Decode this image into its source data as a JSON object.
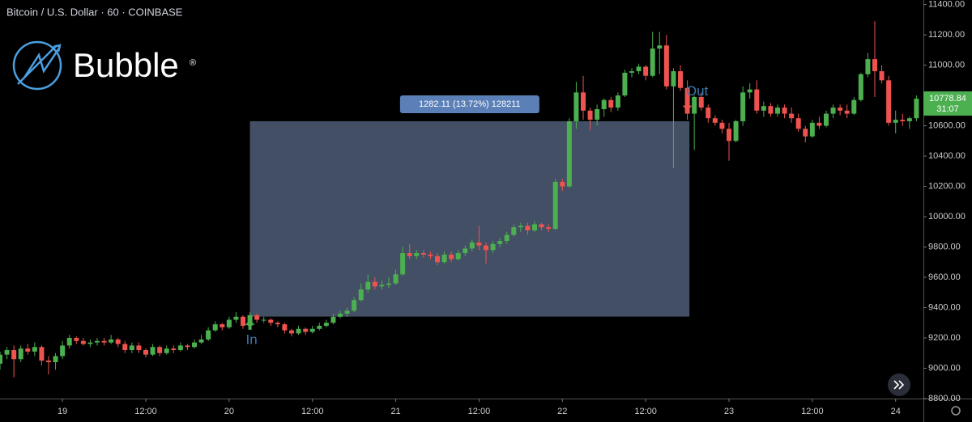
{
  "chart_data": {
    "type": "candlestick",
    "title": "Bitcoin / U.S. Dollar · 60 · COINBASE",
    "logo": {
      "name": "Bubble",
      "mark": "®"
    },
    "x": [
      -9,
      -8,
      -7,
      -6,
      -5,
      -4,
      -3,
      -2,
      -1,
      0,
      1,
      2,
      3,
      4,
      5,
      6,
      7,
      8,
      9,
      10,
      11,
      12,
      13,
      14,
      15,
      16,
      17,
      18,
      19,
      20,
      21,
      22,
      23,
      24,
      25,
      26,
      27,
      28,
      29,
      30,
      31,
      32,
      33,
      34,
      35,
      36,
      37,
      38,
      39,
      40,
      41,
      42,
      43,
      44,
      45,
      46,
      47,
      48,
      49,
      50,
      51,
      52,
      53,
      54,
      55,
      56,
      57,
      58,
      59,
      60,
      61,
      62,
      63,
      64,
      65,
      66,
      67,
      68,
      69,
      70,
      71,
      72,
      73,
      74,
      75,
      76,
      77,
      78,
      79,
      80,
      81,
      82,
      83,
      84,
      85,
      86,
      87,
      88,
      89,
      90,
      91,
      92,
      93,
      94,
      95,
      96,
      97,
      98,
      99,
      100,
      101,
      102,
      103,
      104,
      105,
      106,
      107,
      108,
      109,
      110,
      111,
      112,
      113,
      114,
      115,
      116,
      117,
      118,
      119,
      120,
      121,
      122,
      123
    ],
    "candles": [
      [
        9030,
        9110,
        8990,
        9090
      ],
      [
        9090,
        9140,
        9060,
        9120
      ],
      [
        9120,
        9150,
        8940,
        9060
      ],
      [
        9060,
        9150,
        9040,
        9130
      ],
      [
        9130,
        9160,
        9090,
        9110
      ],
      [
        9110,
        9170,
        9080,
        9140
      ],
      [
        9140,
        9150,
        9020,
        9050
      ],
      [
        9050,
        9080,
        8960,
        9040
      ],
      [
        9040,
        9100,
        8990,
        9080
      ],
      [
        9080,
        9180,
        9060,
        9150
      ],
      [
        9150,
        9220,
        9130,
        9200
      ],
      [
        9200,
        9210,
        9160,
        9180
      ],
      [
        9180,
        9200,
        9150,
        9160
      ],
      [
        9160,
        9190,
        9140,
        9170
      ],
      [
        9170,
        9200,
        9150,
        9180
      ],
      [
        9180,
        9200,
        9150,
        9170
      ],
      [
        9170,
        9220,
        9160,
        9190
      ],
      [
        9190,
        9200,
        9140,
        9160
      ],
      [
        9160,
        9180,
        9100,
        9120
      ],
      [
        9120,
        9170,
        9100,
        9150
      ],
      [
        9150,
        9170,
        9100,
        9120
      ],
      [
        9120,
        9130,
        9070,
        9090
      ],
      [
        9090,
        9160,
        9080,
        9140
      ],
      [
        9140,
        9150,
        9080,
        9100
      ],
      [
        9100,
        9150,
        9090,
        9130
      ],
      [
        9130,
        9150,
        9100,
        9120
      ],
      [
        9120,
        9170,
        9110,
        9150
      ],
      [
        9150,
        9160,
        9120,
        9140
      ],
      [
        9140,
        9190,
        9130,
        9170
      ],
      [
        9170,
        9220,
        9160,
        9190
      ],
      [
        9190,
        9270,
        9180,
        9250
      ],
      [
        9250,
        9310,
        9240,
        9290
      ],
      [
        9290,
        9300,
        9250,
        9270
      ],
      [
        9270,
        9340,
        9260,
        9320
      ],
      [
        9320,
        9370,
        9300,
        9340
      ],
      [
        9340,
        9350,
        9260,
        9280
      ],
      [
        9280,
        9370,
        9270,
        9350
      ],
      [
        9350,
        9360,
        9300,
        9320
      ],
      [
        9320,
        9340,
        9300,
        9320
      ],
      [
        9320,
        9330,
        9280,
        9300
      ],
      [
        9300,
        9310,
        9270,
        9290
      ],
      [
        9290,
        9300,
        9230,
        9250
      ],
      [
        9250,
        9260,
        9210,
        9230
      ],
      [
        9230,
        9280,
        9220,
        9260
      ],
      [
        9260,
        9270,
        9220,
        9240
      ],
      [
        9240,
        9280,
        9230,
        9260
      ],
      [
        9260,
        9300,
        9250,
        9280
      ],
      [
        9280,
        9320,
        9270,
        9300
      ],
      [
        9300,
        9360,
        9290,
        9340
      ],
      [
        9340,
        9380,
        9330,
        9360
      ],
      [
        9360,
        9400,
        9340,
        9380
      ],
      [
        9380,
        9470,
        9370,
        9450
      ],
      [
        9450,
        9560,
        9440,
        9520
      ],
      [
        9520,
        9620,
        9500,
        9570
      ],
      [
        9570,
        9600,
        9520,
        9540
      ],
      [
        9540,
        9580,
        9520,
        9550
      ],
      [
        9550,
        9600,
        9530,
        9560
      ],
      [
        9560,
        9650,
        9550,
        9620
      ],
      [
        9620,
        9800,
        9610,
        9760
      ],
      [
        9760,
        9820,
        9720,
        9740
      ],
      [
        9740,
        9780,
        9720,
        9760
      ],
      [
        9760,
        9780,
        9730,
        9750
      ],
      [
        9750,
        9770,
        9720,
        9740
      ],
      [
        9740,
        9760,
        9680,
        9700
      ],
      [
        9700,
        9770,
        9690,
        9750
      ],
      [
        9750,
        9770,
        9700,
        9720
      ],
      [
        9720,
        9780,
        9710,
        9760
      ],
      [
        9760,
        9810,
        9740,
        9790
      ],
      [
        9790,
        9850,
        9770,
        9830
      ],
      [
        9830,
        9940,
        9780,
        9810
      ],
      [
        9810,
        9830,
        9690,
        9780
      ],
      [
        9780,
        9840,
        9760,
        9820
      ],
      [
        9820,
        9860,
        9800,
        9840
      ],
      [
        9840,
        9900,
        9820,
        9880
      ],
      [
        9880,
        9950,
        9870,
        9930
      ],
      [
        9930,
        9960,
        9900,
        9940
      ],
      [
        9940,
        9960,
        9880,
        9910
      ],
      [
        9910,
        9970,
        9900,
        9950
      ],
      [
        9950,
        9960,
        9910,
        9930
      ],
      [
        9930,
        9950,
        9900,
        9920
      ],
      [
        9920,
        10250,
        9910,
        10230
      ],
      [
        10230,
        10250,
        10170,
        10200
      ],
      [
        10200,
        10650,
        10190,
        10630
      ],
      [
        10630,
        10890,
        10580,
        10820
      ],
      [
        10820,
        10930,
        10640,
        10700
      ],
      [
        10700,
        10720,
        10570,
        10640
      ],
      [
        10640,
        10740,
        10600,
        10710
      ],
      [
        10710,
        10780,
        10660,
        10770
      ],
      [
        10770,
        10790,
        10690,
        10720
      ],
      [
        10720,
        10820,
        10700,
        10800
      ],
      [
        10800,
        10970,
        10790,
        10950
      ],
      [
        10950,
        10980,
        10920,
        10960
      ],
      [
        10960,
        11010,
        10940,
        10990
      ],
      [
        10990,
        11000,
        10900,
        10930
      ],
      [
        10930,
        11220,
        10920,
        11110
      ],
      [
        11110,
        11220,
        10940,
        11130
      ],
      [
        11130,
        11200,
        10840,
        10860
      ],
      [
        10860,
        10980,
        10320,
        10960
      ],
      [
        10960,
        11000,
        10830,
        10850
      ],
      [
        10850,
        10900,
        10640,
        10680
      ],
      [
        10680,
        10800,
        10440,
        10790
      ],
      [
        10790,
        10820,
        10700,
        10720
      ],
      [
        10720,
        10740,
        10620,
        10650
      ],
      [
        10650,
        10670,
        10600,
        10620
      ],
      [
        10620,
        10640,
        10550,
        10580
      ],
      [
        10580,
        10620,
        10370,
        10500
      ],
      [
        10500,
        10640,
        10490,
        10630
      ],
      [
        10630,
        10860,
        10600,
        10820
      ],
      [
        10820,
        10880,
        10780,
        10840
      ],
      [
        10840,
        10900,
        10680,
        10700
      ],
      [
        10700,
        10760,
        10660,
        10730
      ],
      [
        10730,
        10750,
        10660,
        10680
      ],
      [
        10680,
        10740,
        10660,
        10720
      ],
      [
        10720,
        10740,
        10650,
        10680
      ],
      [
        10680,
        10720,
        10620,
        10650
      ],
      [
        10650,
        10680,
        10560,
        10580
      ],
      [
        10580,
        10600,
        10490,
        10530
      ],
      [
        10530,
        10640,
        10520,
        10620
      ],
      [
        10620,
        10660,
        10580,
        10600
      ],
      [
        10600,
        10700,
        10590,
        10680
      ],
      [
        10680,
        10740,
        10650,
        10720
      ],
      [
        10720,
        10740,
        10670,
        10700
      ],
      [
        10700,
        10740,
        10650,
        10680
      ],
      [
        10680,
        10790,
        10670,
        10770
      ],
      [
        10770,
        10950,
        10760,
        10940
      ],
      [
        10940,
        11080,
        10920,
        11040
      ],
      [
        11040,
        11290,
        10790,
        10960
      ],
      [
        10960,
        11000,
        10880,
        10900
      ],
      [
        10900,
        10930,
        10600,
        10620
      ],
      [
        10620,
        10700,
        10550,
        10640
      ],
      [
        10640,
        10680,
        10600,
        10630
      ],
      [
        10630,
        10660,
        10580,
        10650
      ],
      [
        10650,
        10800,
        10630,
        10779
      ]
    ],
    "up_color": "#4caf50",
    "down_color": "#ef5350",
    "xlim": [
      -9,
      124
    ],
    "xticks": [
      {
        "value": 0,
        "label": "19"
      },
      {
        "value": 12,
        "label": "12:00"
      },
      {
        "value": 24,
        "label": "20"
      },
      {
        "value": 36,
        "label": "12:00"
      },
      {
        "value": 48,
        "label": "21"
      },
      {
        "value": 60,
        "label": "12:00"
      },
      {
        "value": 72,
        "label": "22"
      },
      {
        "value": 84,
        "label": "12:00"
      },
      {
        "value": 96,
        "label": "23"
      },
      {
        "value": 108,
        "label": "12:00"
      },
      {
        "value": 120,
        "label": "24"
      }
    ],
    "ylim": [
      8800,
      11430
    ],
    "yticks": [
      {
        "value": 8800,
        "label": "8800.00"
      },
      {
        "value": 9000,
        "label": "9000.00"
      },
      {
        "value": 9200,
        "label": "9200.00"
      },
      {
        "value": 9400,
        "label": "9400.00"
      },
      {
        "value": 9600,
        "label": "9600.00"
      },
      {
        "value": 9800,
        "label": "9800.00"
      },
      {
        "value": 10000,
        "label": "10000.00"
      },
      {
        "value": 10200,
        "label": "10200.00"
      },
      {
        "value": 10400,
        "label": "10400.00"
      },
      {
        "value": 10600,
        "label": "10600.00"
      },
      {
        "value": 10800,
        "label": "10800.00"
      },
      {
        "value": 11000,
        "label": "11000.00"
      },
      {
        "value": 11200,
        "label": "11200.00"
      },
      {
        "value": 11400,
        "label": "11400.00"
      }
    ],
    "last_price": 10778.84,
    "countdown": "31:07",
    "measure": {
      "label": "1282.11 (13.72%) 128211",
      "x": [
        27,
        90.3
      ],
      "y": [
        9341,
        10630
      ]
    },
    "markers": [
      {
        "label": "In",
        "x": 27,
        "side": "below",
        "color": "#4caf50"
      },
      {
        "label": "Out",
        "x": 90,
        "side": "above",
        "color": "#ef5350"
      }
    ]
  }
}
